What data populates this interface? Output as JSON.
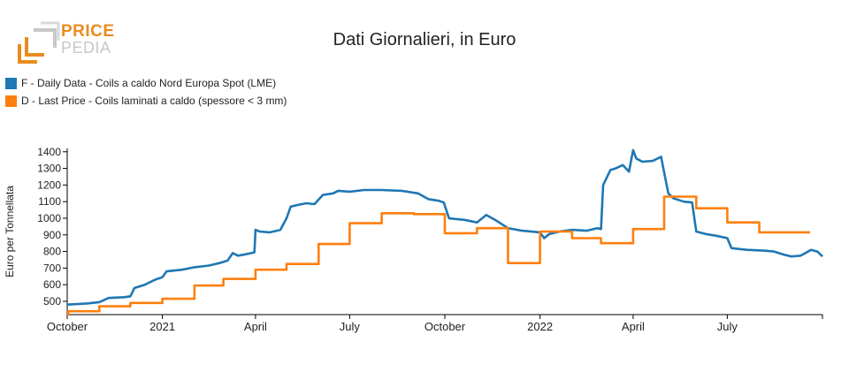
{
  "logo": {
    "line1": "PRICE",
    "line2": "PEDIA",
    "colors": {
      "orange": "#e98c1f",
      "gray": "#c8c8c8"
    }
  },
  "chart_data": {
    "type": "line",
    "title": "Dati Giornalieri, in Euro",
    "ylabel": "Euro per Tonnellata",
    "xlabel": "",
    "ylim": [
      420,
      1420
    ],
    "yticks": [
      500,
      600,
      700,
      800,
      900,
      1000,
      1100,
      1200,
      1300,
      1400
    ],
    "xlim": [
      "2020-10-01",
      "2022-10-01"
    ],
    "xticks": [
      {
        "date": "2020-10-01",
        "label": "October"
      },
      {
        "date": "2021-01-01",
        "label": "2021"
      },
      {
        "date": "2021-04-01",
        "label": "April"
      },
      {
        "date": "2021-07-01",
        "label": "July"
      },
      {
        "date": "2021-10-01",
        "label": "October"
      },
      {
        "date": "2022-01-01",
        "label": "2022"
      },
      {
        "date": "2022-04-01",
        "label": "April"
      },
      {
        "date": "2022-07-01",
        "label": "July"
      }
    ],
    "legend_placement": "top-left",
    "grid": false,
    "series": [
      {
        "name": "F - Daily Data - Coils a caldo Nord Europa Spot (LME)",
        "color": "#1f77b4",
        "step": false,
        "points": [
          [
            "2020-10-01",
            480
          ],
          [
            "2020-10-20",
            487
          ],
          [
            "2020-11-01",
            495
          ],
          [
            "2020-11-10",
            520
          ],
          [
            "2020-11-25",
            525
          ],
          [
            "2020-12-01",
            530
          ],
          [
            "2020-12-05",
            580
          ],
          [
            "2020-12-15",
            600
          ],
          [
            "2020-12-25",
            630
          ],
          [
            "2021-01-01",
            645
          ],
          [
            "2021-01-05",
            680
          ],
          [
            "2021-01-20",
            690
          ],
          [
            "2021-02-01",
            705
          ],
          [
            "2021-02-15",
            715
          ],
          [
            "2021-02-25",
            730
          ],
          [
            "2021-03-05",
            745
          ],
          [
            "2021-03-10",
            790
          ],
          [
            "2021-03-15",
            775
          ],
          [
            "2021-03-20",
            780
          ],
          [
            "2021-03-28",
            790
          ],
          [
            "2021-03-31",
            795
          ],
          [
            "2021-04-01",
            930
          ],
          [
            "2021-04-05",
            920
          ],
          [
            "2021-04-15",
            915
          ],
          [
            "2021-04-25",
            930
          ],
          [
            "2021-05-01",
            1000
          ],
          [
            "2021-05-05",
            1070
          ],
          [
            "2021-05-12",
            1080
          ],
          [
            "2021-05-20",
            1090
          ],
          [
            "2021-05-28",
            1085
          ],
          [
            "2021-06-05",
            1140
          ],
          [
            "2021-06-15",
            1150
          ],
          [
            "2021-06-20",
            1165
          ],
          [
            "2021-07-01",
            1160
          ],
          [
            "2021-07-15",
            1170
          ],
          [
            "2021-08-01",
            1170
          ],
          [
            "2021-08-20",
            1165
          ],
          [
            "2021-09-05",
            1150
          ],
          [
            "2021-09-15",
            1115
          ],
          [
            "2021-09-25",
            1105
          ],
          [
            "2021-09-30",
            1095
          ],
          [
            "2021-10-05",
            1000
          ],
          [
            "2021-10-20",
            990
          ],
          [
            "2021-11-01",
            975
          ],
          [
            "2021-11-10",
            1020
          ],
          [
            "2021-11-20",
            985
          ],
          [
            "2021-12-01",
            940
          ],
          [
            "2021-12-15",
            925
          ],
          [
            "2022-01-01",
            915
          ],
          [
            "2022-01-05",
            880
          ],
          [
            "2022-01-10",
            905
          ],
          [
            "2022-01-20",
            920
          ],
          [
            "2022-02-01",
            930
          ],
          [
            "2022-02-15",
            925
          ],
          [
            "2022-02-25",
            940
          ],
          [
            "2022-03-01",
            935
          ],
          [
            "2022-03-03",
            1200
          ],
          [
            "2022-03-10",
            1290
          ],
          [
            "2022-03-15",
            1300
          ],
          [
            "2022-03-22",
            1320
          ],
          [
            "2022-03-28",
            1280
          ],
          [
            "2022-04-01",
            1410
          ],
          [
            "2022-04-04",
            1360
          ],
          [
            "2022-04-10",
            1340
          ],
          [
            "2022-04-20",
            1345
          ],
          [
            "2022-04-28",
            1370
          ],
          [
            "2022-05-05",
            1150
          ],
          [
            "2022-05-10",
            1120
          ],
          [
            "2022-05-20",
            1100
          ],
          [
            "2022-05-28",
            1095
          ],
          [
            "2022-06-01",
            920
          ],
          [
            "2022-06-10",
            905
          ],
          [
            "2022-06-20",
            895
          ],
          [
            "2022-07-01",
            880
          ],
          [
            "2022-07-05",
            820
          ],
          [
            "2022-07-20",
            810
          ],
          [
            "2022-08-05",
            805
          ],
          [
            "2022-08-15",
            800
          ],
          [
            "2022-08-25",
            780
          ],
          [
            "2022-09-01",
            770
          ],
          [
            "2022-09-10",
            775
          ],
          [
            "2022-09-20",
            810
          ],
          [
            "2022-09-26",
            800
          ],
          [
            "2022-10-01",
            770
          ]
        ]
      },
      {
        "name": "D - Last Price - Coils laminati a caldo (spessore < 3 mm)",
        "color": "#ff7f0e",
        "step": true,
        "points": [
          [
            "2020-10-01",
            420
          ],
          [
            "2020-10-02",
            440
          ],
          [
            "2020-11-01",
            470
          ],
          [
            "2020-12-01",
            490
          ],
          [
            "2021-01-01",
            515
          ],
          [
            "2021-02-01",
            595
          ],
          [
            "2021-03-01",
            635
          ],
          [
            "2021-04-01",
            690
          ],
          [
            "2021-05-01",
            725
          ],
          [
            "2021-06-01",
            845
          ],
          [
            "2021-07-01",
            970
          ],
          [
            "2021-08-01",
            1030
          ],
          [
            "2021-09-01",
            1025
          ],
          [
            "2021-10-01",
            910
          ],
          [
            "2021-11-01",
            940
          ],
          [
            "2021-12-01",
            730
          ],
          [
            "2022-01-01",
            920
          ],
          [
            "2022-02-01",
            880
          ],
          [
            "2022-03-01",
            850
          ],
          [
            "2022-04-01",
            935
          ],
          [
            "2022-05-01",
            1130
          ],
          [
            "2022-06-01",
            1060
          ],
          [
            "2022-07-01",
            975
          ],
          [
            "2022-08-01",
            915
          ],
          [
            "2022-09-01",
            915
          ]
        ]
      }
    ]
  }
}
